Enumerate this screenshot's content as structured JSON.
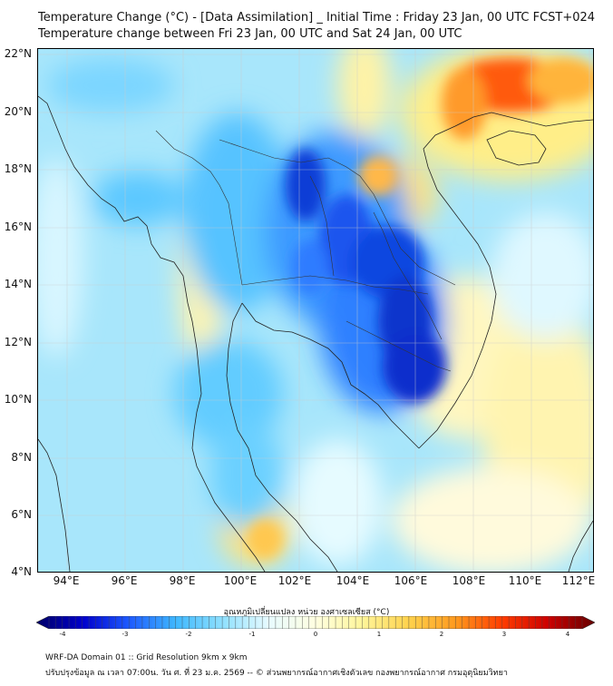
{
  "title_line1": "Temperature Change (°C) - [Data Assimilation] _ Initial Time : Friday 23 Jan, 00 UTC FCST+024",
  "title_line2": "Temperature change between Fri 23 Jan, 00 UTC and Sat 24 Jan, 00 UTC",
  "lat_labels": [
    "22°N",
    "20°N",
    "18°N",
    "16°N",
    "14°N",
    "12°N",
    "10°N",
    "8°N",
    "6°N",
    "4°N"
  ],
  "lon_labels": [
    "94°E",
    "96°E",
    "98°E",
    "100°E",
    "102°E",
    "104°E",
    "106°E",
    "108°E",
    "110°E",
    "112°E"
  ],
  "colorbar": {
    "title": "อุณหภูมิเปลี่ยนแปลง หน่วย องศาเซลเซียส (°C)",
    "labels": [
      "-4",
      "-3",
      "-2",
      "-1",
      "0",
      "1",
      "2",
      "3",
      "4"
    ],
    "colors": [
      "#000066",
      "#0000cc",
      "#1e5bff",
      "#3fb8ff",
      "#8fe0ff",
      "#e8fbff",
      "#ffffe0",
      "#fff59a",
      "#ffd24d",
      "#ff9a1f",
      "#ff3d00",
      "#cc0000",
      "#660000"
    ]
  },
  "footer_line1": "WRF-DA Domain 01 :: Grid Resolution 9km x 9km",
  "footer_line2": "ปรับปรุงข้อมูล ณ เวลา 07:00น. วัน ศ. ที่ 23 ม.ค. 2569 -- © ส่วนพยากรณ์อากาศเชิงตัวเลข กองพยากรณ์อากาศ กรมอุตุนิยมวิทยา"
}
